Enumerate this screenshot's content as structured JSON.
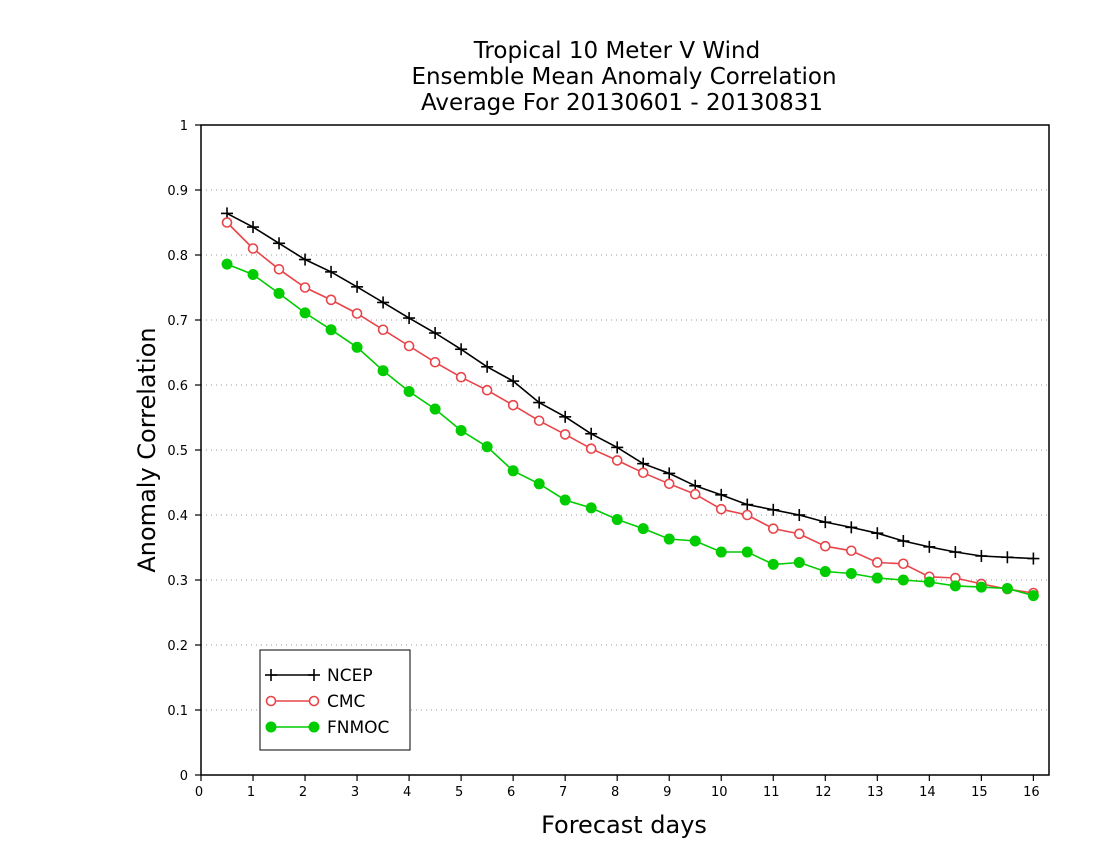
{
  "chart_data": {
    "type": "line",
    "title_lines": [
      "Tropical 10 Meter V Wind",
      "Ensemble Mean Anomaly Correlation",
      "Average For 20130601 - 20130831"
    ],
    "xlabel": "Forecast days",
    "ylabel": "Anomaly Correlation",
    "xlim": [
      0,
      16.3
    ],
    "ylim": [
      0,
      1
    ],
    "xticks": [
      0,
      1,
      2,
      3,
      4,
      5,
      6,
      7,
      8,
      9,
      10,
      11,
      12,
      13,
      14,
      15,
      16
    ],
    "yticks": [
      0,
      0.1,
      0.2,
      0.3,
      0.4,
      0.5,
      0.6,
      0.7,
      0.8,
      0.9,
      1
    ],
    "ytick_labels": [
      "0",
      "0.1",
      "0.2",
      "0.3",
      "0.4",
      "0.5",
      "0.6",
      "0.7",
      "0.8",
      "0.9",
      "1"
    ],
    "grid": "horizontal dotted",
    "legend_position": "bottom-left",
    "x": [
      0.5,
      1,
      1.5,
      2,
      2.5,
      3,
      3.5,
      4,
      4.5,
      5,
      5.5,
      6,
      6.5,
      7,
      7.5,
      8,
      8.5,
      9,
      9.5,
      10,
      10.5,
      11,
      11.5,
      12,
      12.5,
      13,
      13.5,
      14,
      14.5,
      15,
      15.5,
      16
    ],
    "series": [
      {
        "name": "NCEP",
        "color": "#000000",
        "marker": "plus",
        "values": [
          0.864,
          0.843,
          0.818,
          0.793,
          0.774,
          0.751,
          0.727,
          0.703,
          0.68,
          0.655,
          0.628,
          0.606,
          0.573,
          0.551,
          0.525,
          0.504,
          0.479,
          0.464,
          0.445,
          0.431,
          0.416,
          0.408,
          0.4,
          0.389,
          0.381,
          0.372,
          0.36,
          0.351,
          0.343,
          0.337,
          0.335,
          0.333
        ]
      },
      {
        "name": "CMC",
        "color": "#e8454a",
        "marker": "open-circle",
        "values": [
          0.85,
          0.81,
          0.778,
          0.75,
          0.731,
          0.71,
          0.685,
          0.66,
          0.635,
          0.612,
          0.592,
          0.569,
          0.545,
          0.524,
          0.502,
          0.484,
          0.465,
          0.448,
          0.432,
          0.409,
          0.4,
          0.379,
          0.371,
          0.352,
          0.345,
          0.327,
          0.325,
          0.305,
          0.303,
          0.294,
          0.286,
          0.28
        ]
      },
      {
        "name": "FNMOC",
        "color": "#00cc00",
        "marker": "filled-circle",
        "values": [
          0.786,
          0.77,
          0.741,
          0.711,
          0.685,
          0.658,
          0.622,
          0.59,
          0.563,
          0.53,
          0.505,
          0.468,
          0.448,
          0.423,
          0.411,
          0.393,
          0.379,
          0.363,
          0.36,
          0.343,
          0.343,
          0.324,
          0.327,
          0.313,
          0.31,
          0.303,
          0.3,
          0.297,
          0.291,
          0.289,
          0.287,
          0.276
        ]
      }
    ]
  }
}
